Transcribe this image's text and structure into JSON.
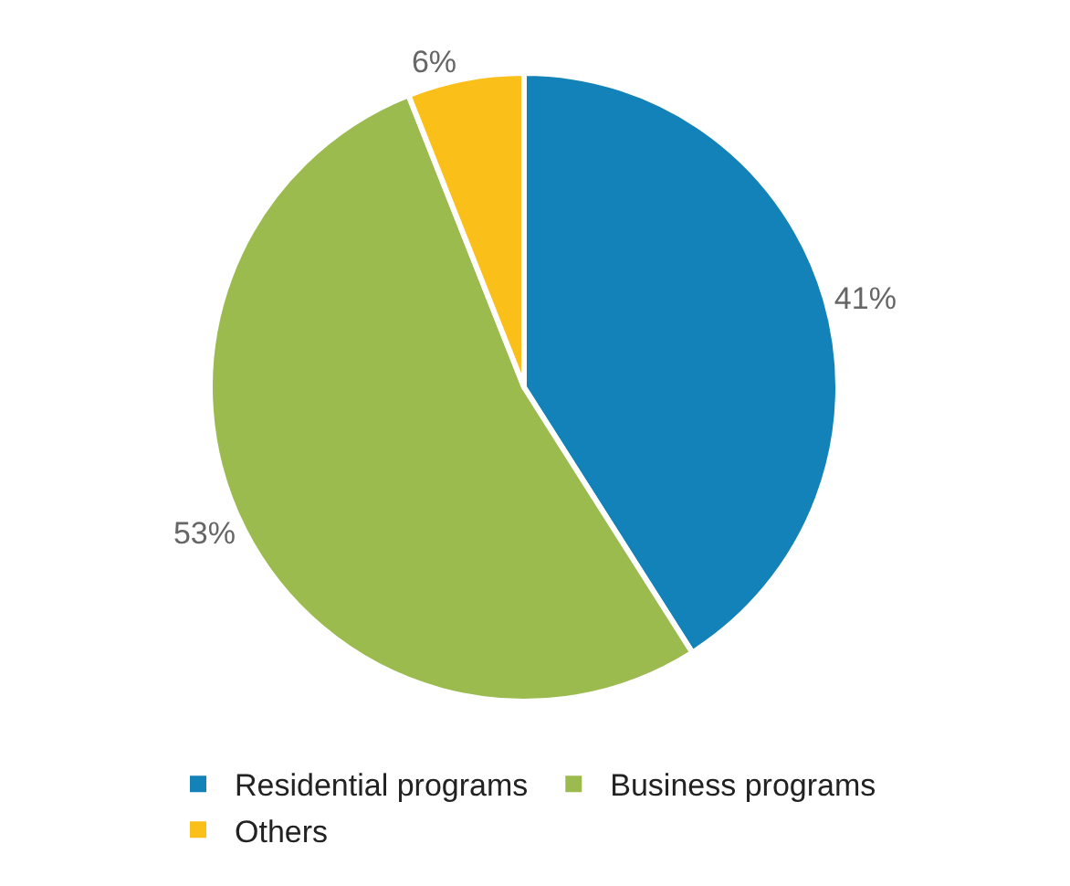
{
  "chart_data": {
    "type": "pie",
    "categories": [
      "Residential programs",
      "Business programs",
      "Others"
    ],
    "values": [
      41,
      53,
      6
    ],
    "colors": [
      "#1282b8",
      "#9bbb4f",
      "#fbbf1a"
    ],
    "value_labels": [
      "41%",
      "53%",
      "6%"
    ],
    "legend": "bottom"
  }
}
